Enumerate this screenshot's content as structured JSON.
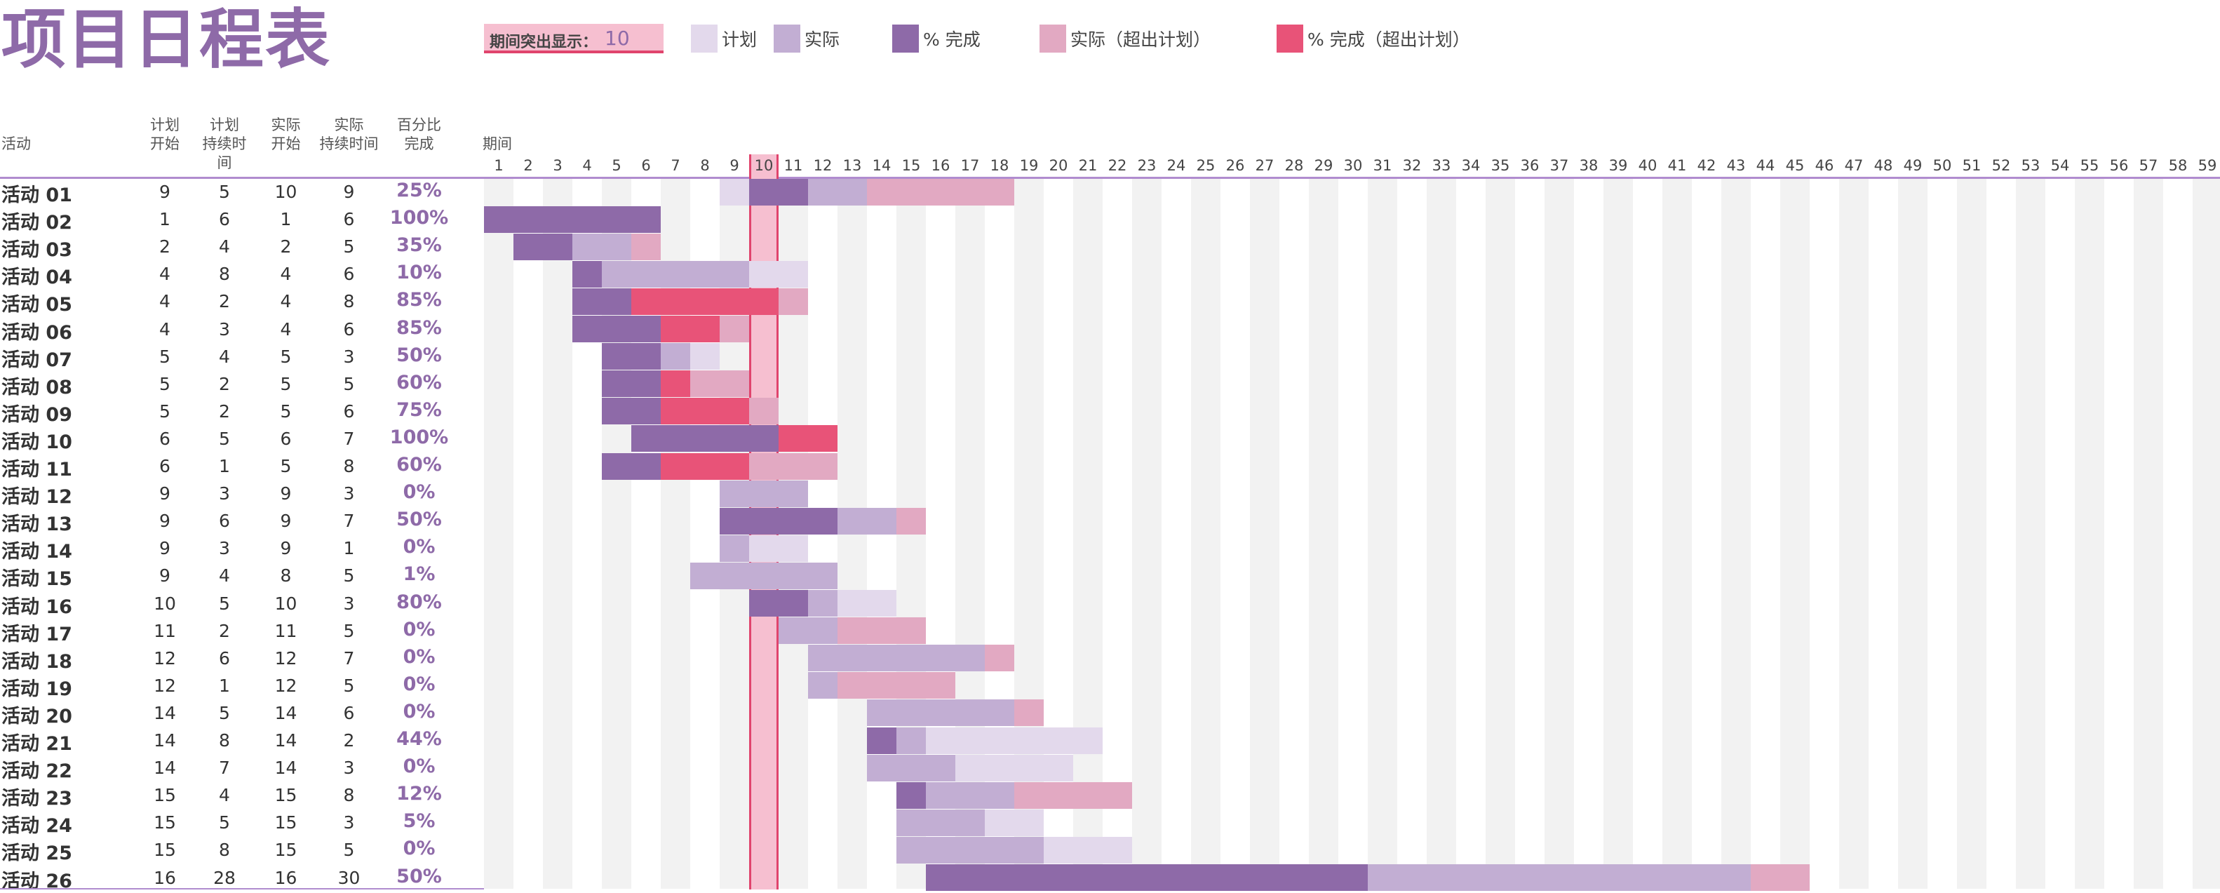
{
  "title": "项目日程表",
  "highlight": {
    "label": "期间突出显示：",
    "value": 10
  },
  "legend": [
    {
      "label": "计划",
      "color": "#e3d9ec",
      "icon": "plan-swatch"
    },
    {
      "label": "实际",
      "color": "#c2aed3",
      "icon": "actual-swatch"
    },
    {
      "label": "% 完成",
      "color": "#8e6aa8",
      "icon": "complete-swatch"
    },
    {
      "label": "实际（超出计划）",
      "color": "#e2a9c2",
      "icon": "actual-over-swatch"
    },
    {
      "label": "% 完成（超出计划）",
      "color": "#e85378",
      "icon": "complete-over-swatch"
    }
  ],
  "headers": {
    "activity": "活动",
    "plan_start": "计划\n开始",
    "plan_duration": "计划\n持续时间",
    "actual_start": "实际\n开始",
    "actual_duration": "实际\n持续时间",
    "percent": "百分比\n完成",
    "period": "期间"
  },
  "periods": 60,
  "colors": {
    "plan": "#e3d9ec",
    "actual": "#c2aed3",
    "complete": "#8e6aa8",
    "actual_over": "#e2a9c2",
    "complete_over": "#e85378",
    "highlight": "#f6bfd0",
    "highlight_border": "#e0446d",
    "stripe": "#f2f2f2"
  },
  "activities": [
    {
      "name": "活动 01",
      "ps": 9,
      "pd": 5,
      "as": 10,
      "ad": 9,
      "pct": "25%",
      "p": 25
    },
    {
      "name": "活动 02",
      "ps": 1,
      "pd": 6,
      "as": 1,
      "ad": 6,
      "pct": "100%",
      "p": 100
    },
    {
      "name": "活动 03",
      "ps": 2,
      "pd": 4,
      "as": 2,
      "ad": 5,
      "pct": "35%",
      "p": 35
    },
    {
      "name": "活动 04",
      "ps": 4,
      "pd": 8,
      "as": 4,
      "ad": 6,
      "pct": "10%",
      "p": 10
    },
    {
      "name": "活动 05",
      "ps": 4,
      "pd": 2,
      "as": 4,
      "ad": 8,
      "pct": "85%",
      "p": 85
    },
    {
      "name": "活动 06",
      "ps": 4,
      "pd": 3,
      "as": 4,
      "ad": 6,
      "pct": "85%",
      "p": 85
    },
    {
      "name": "活动 07",
      "ps": 5,
      "pd": 4,
      "as": 5,
      "ad": 3,
      "pct": "50%",
      "p": 50
    },
    {
      "name": "活动 08",
      "ps": 5,
      "pd": 2,
      "as": 5,
      "ad": 5,
      "pct": "60%",
      "p": 60
    },
    {
      "name": "活动 09",
      "ps": 5,
      "pd": 2,
      "as": 5,
      "ad": 6,
      "pct": "75%",
      "p": 75
    },
    {
      "name": "活动 10",
      "ps": 6,
      "pd": 5,
      "as": 6,
      "ad": 7,
      "pct": "100%",
      "p": 100
    },
    {
      "name": "活动 11",
      "ps": 6,
      "pd": 1,
      "as": 5,
      "ad": 8,
      "pct": "60%",
      "p": 60
    },
    {
      "name": "活动 12",
      "ps": 9,
      "pd": 3,
      "as": 9,
      "ad": 3,
      "pct": "0%",
      "p": 0
    },
    {
      "name": "活动 13",
      "ps": 9,
      "pd": 6,
      "as": 9,
      "ad": 7,
      "pct": "50%",
      "p": 50
    },
    {
      "name": "活动 14",
      "ps": 9,
      "pd": 3,
      "as": 9,
      "ad": 1,
      "pct": "0%",
      "p": 0
    },
    {
      "name": "活动 15",
      "ps": 9,
      "pd": 4,
      "as": 8,
      "ad": 5,
      "pct": "1%",
      "p": 1
    },
    {
      "name": "活动 16",
      "ps": 10,
      "pd": 5,
      "as": 10,
      "ad": 3,
      "pct": "80%",
      "p": 80
    },
    {
      "name": "活动 17",
      "ps": 11,
      "pd": 2,
      "as": 11,
      "ad": 5,
      "pct": "0%",
      "p": 0
    },
    {
      "name": "活动 18",
      "ps": 12,
      "pd": 6,
      "as": 12,
      "ad": 7,
      "pct": "0%",
      "p": 0
    },
    {
      "name": "活动 19",
      "ps": 12,
      "pd": 1,
      "as": 12,
      "ad": 5,
      "pct": "0%",
      "p": 0
    },
    {
      "name": "活动 20",
      "ps": 14,
      "pd": 5,
      "as": 14,
      "ad": 6,
      "pct": "0%",
      "p": 0
    },
    {
      "name": "活动 21",
      "ps": 14,
      "pd": 8,
      "as": 14,
      "ad": 2,
      "pct": "44%",
      "p": 44
    },
    {
      "name": "活动 22",
      "ps": 14,
      "pd": 7,
      "as": 14,
      "ad": 3,
      "pct": "0%",
      "p": 0
    },
    {
      "name": "活动 23",
      "ps": 15,
      "pd": 4,
      "as": 15,
      "ad": 8,
      "pct": "12%",
      "p": 12
    },
    {
      "name": "活动 24",
      "ps": 15,
      "pd": 5,
      "as": 15,
      "ad": 3,
      "pct": "5%",
      "p": 5
    },
    {
      "name": "活动 25",
      "ps": 15,
      "pd": 8,
      "as": 15,
      "ad": 5,
      "pct": "0%",
      "p": 0
    },
    {
      "name": "活动 26",
      "ps": 16,
      "pd": 28,
      "as": 16,
      "ad": 30,
      "pct": "50%",
      "p": 50
    }
  ]
}
